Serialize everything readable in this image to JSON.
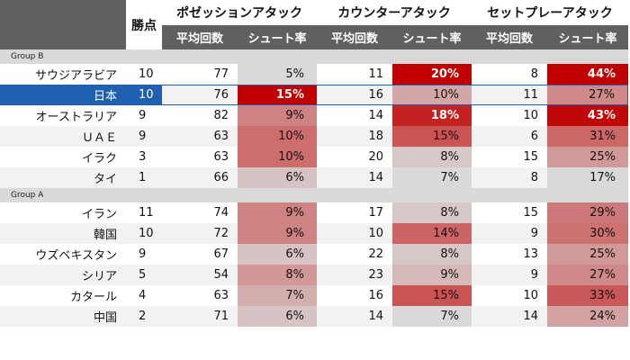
{
  "header": {
    "points_label": "勝点",
    "groups": [
      "ポゼッションアタック",
      "カウンターアタック",
      "セットプレーアタック"
    ],
    "sub_avg": "平均回数",
    "sub_rate": "シュート率"
  },
  "sections": [
    {
      "label": "Group B",
      "rows": [
        {
          "team": "サウジアラビア",
          "pts": "10",
          "pa": "77",
          "pr": "5%",
          "ca": "11",
          "cr": "20%",
          "sa": "8",
          "sr": "44%"
        },
        {
          "team": "日本",
          "pts": "10",
          "pa": "76",
          "pr": "15%",
          "ca": "16",
          "cr": "10%",
          "sa": "11",
          "sr": "27%",
          "selected": true
        },
        {
          "team": "オーストラリア",
          "pts": "9",
          "pa": "82",
          "pr": "9%",
          "ca": "14",
          "cr": "18%",
          "sa": "10",
          "sr": "43%"
        },
        {
          "team": "ＵＡＥ",
          "pts": "9",
          "pa": "63",
          "pr": "10%",
          "ca": "18",
          "cr": "15%",
          "sa": "6",
          "sr": "31%"
        },
        {
          "team": "イラク",
          "pts": "3",
          "pa": "63",
          "pr": "10%",
          "ca": "20",
          "cr": "8%",
          "sa": "15",
          "sr": "25%"
        },
        {
          "team": "タイ",
          "pts": "1",
          "pa": "66",
          "pr": "6%",
          "ca": "14",
          "cr": "7%",
          "sa": "8",
          "sr": "17%"
        }
      ]
    },
    {
      "label": "Group A",
      "rows": [
        {
          "team": "イラン",
          "pts": "11",
          "pa": "74",
          "pr": "9%",
          "ca": "17",
          "cr": "8%",
          "sa": "15",
          "sr": "29%"
        },
        {
          "team": "韓国",
          "pts": "10",
          "pa": "72",
          "pr": "9%",
          "ca": "10",
          "cr": "14%",
          "sa": "9",
          "sr": "30%"
        },
        {
          "team": "ウズベキスタン",
          "pts": "9",
          "pa": "67",
          "pr": "6%",
          "ca": "22",
          "cr": "8%",
          "sa": "13",
          "sr": "25%"
        },
        {
          "team": "シリア",
          "pts": "5",
          "pa": "54",
          "pr": "8%",
          "ca": "23",
          "cr": "9%",
          "sa": "9",
          "sr": "27%"
        },
        {
          "team": "カタール",
          "pts": "4",
          "pa": "63",
          "pr": "7%",
          "ca": "16",
          "cr": "15%",
          "sa": "10",
          "sr": "33%"
        },
        {
          "team": "中国",
          "pts": "2",
          "pa": "71",
          "pr": "6%",
          "ca": "14",
          "cr": "7%",
          "sa": "14",
          "sr": "24%"
        }
      ]
    }
  ],
  "colors": {
    "header_bg": "#606060",
    "group_bg": "#d9d9d9",
    "selected_bg": "#2060b0",
    "heat_low": "#d9d9d9",
    "heat_high": "#c00000"
  }
}
